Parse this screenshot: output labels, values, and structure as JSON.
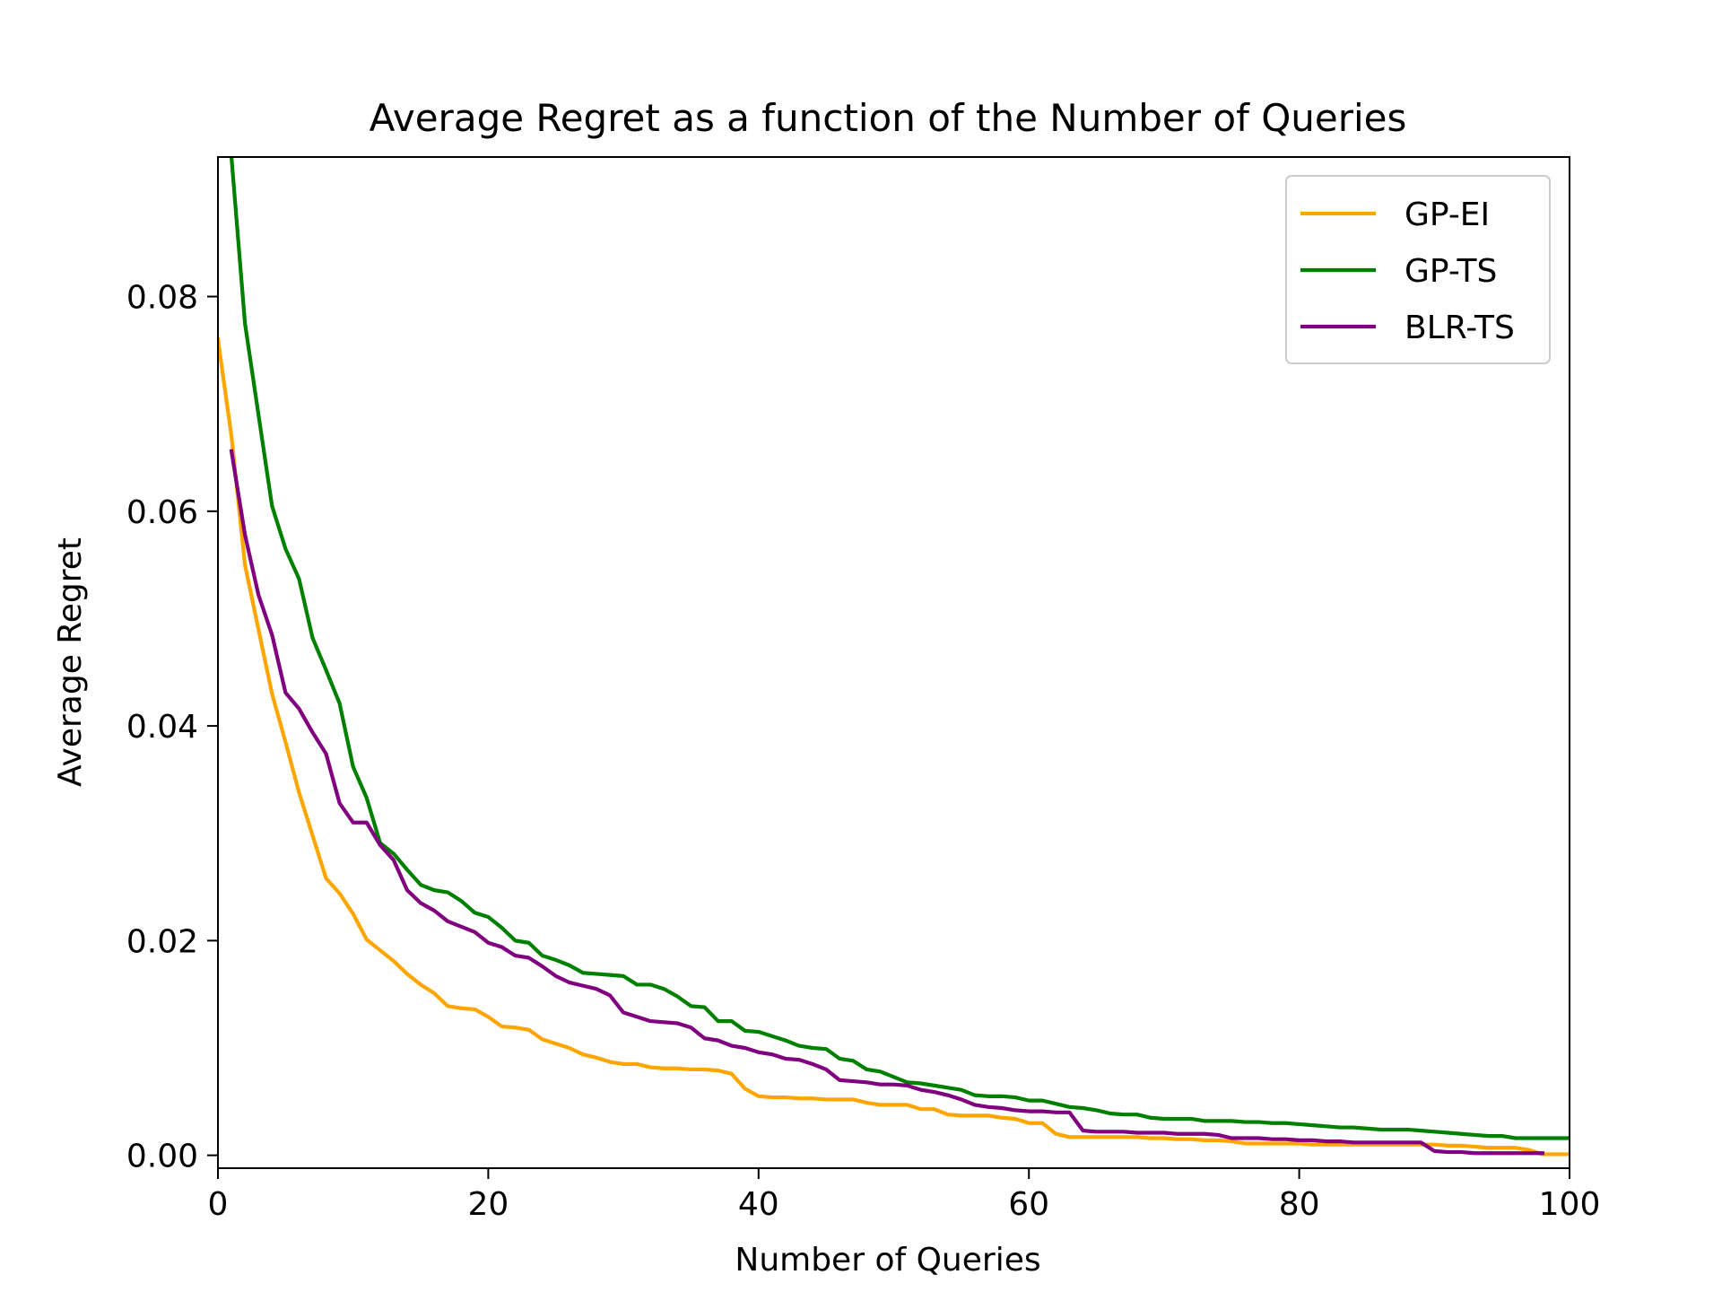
{
  "chart_data": {
    "type": "line",
    "title": "Average Regret as a function of the Number of Queries",
    "xlabel": "Number of Queries",
    "ylabel": "Average Regret",
    "xlim": [
      0,
      100
    ],
    "ylim": [
      -0.0012,
      0.093
    ],
    "xticks": [
      0,
      20,
      40,
      60,
      80,
      100
    ],
    "xtick_labels": [
      "0",
      "20",
      "40",
      "60",
      "80",
      "100"
    ],
    "yticks": [
      0.0,
      0.02,
      0.04,
      0.06,
      0.08
    ],
    "ytick_labels": [
      "0.00",
      "0.02",
      "0.04",
      "0.06",
      "0.08"
    ],
    "grid": false,
    "legend_position": "top-right",
    "series": [
      {
        "name": "GP-EI",
        "color": "#ffa500",
        "x": [
          0,
          1,
          2,
          3,
          4,
          5,
          6,
          7,
          8,
          9,
          10,
          11,
          12,
          13,
          14,
          15,
          16,
          17,
          18,
          19,
          20,
          21,
          22,
          23,
          24,
          25,
          26,
          27,
          28,
          29,
          30,
          31,
          32,
          33,
          34,
          35,
          36,
          37,
          38,
          39,
          40,
          41,
          42,
          43,
          44,
          45,
          46,
          47,
          48,
          49,
          50,
          51,
          52,
          53,
          54,
          55,
          56,
          57,
          58,
          59,
          60,
          61,
          62,
          63,
          64,
          65,
          66,
          67,
          68,
          69,
          70,
          71,
          72,
          73,
          74,
          75,
          76,
          77,
          78,
          79,
          80,
          81,
          82,
          83,
          84,
          85,
          86,
          87,
          88,
          89,
          90,
          91,
          92,
          93,
          94,
          95,
          96,
          97,
          98,
          99,
          100
        ],
        "y": [
          0.076,
          0.067,
          0.055,
          0.049,
          0.043,
          0.0385,
          0.0338,
          0.0298,
          0.0258,
          0.0244,
          0.0225,
          0.0201,
          0.0191,
          0.0181,
          0.0169,
          0.0159,
          0.0151,
          0.0139,
          0.0137,
          0.0136,
          0.0129,
          0.012,
          0.0119,
          0.0117,
          0.0108,
          0.0104,
          0.01,
          0.0094,
          0.0091,
          0.0087,
          0.0085,
          0.0085,
          0.0082,
          0.0081,
          0.0081,
          0.008,
          0.008,
          0.0079,
          0.0076,
          0.0062,
          0.0055,
          0.0054,
          0.0054,
          0.0053,
          0.0053,
          0.0052,
          0.0052,
          0.0052,
          0.0049,
          0.0047,
          0.0047,
          0.0047,
          0.0043,
          0.0043,
          0.0038,
          0.0037,
          0.0037,
          0.0037,
          0.0035,
          0.0034,
          0.003,
          0.003,
          0.002,
          0.0017,
          0.0017,
          0.0017,
          0.0017,
          0.0017,
          0.0017,
          0.0016,
          0.0016,
          0.0015,
          0.0015,
          0.0014,
          0.0014,
          0.0013,
          0.0011,
          0.0011,
          0.0011,
          0.0011,
          0.0011,
          0.001,
          0.001,
          0.001,
          0.001,
          0.001,
          0.001,
          0.001,
          0.001,
          0.001,
          0.001,
          0.0009,
          0.0009,
          0.0008,
          0.0007,
          0.0007,
          0.0007,
          0.0005,
          0.0001,
          0.0001,
          0.0001
        ]
      },
      {
        "name": "GP-TS",
        "color": "#008000",
        "x": [
          1,
          2,
          3,
          4,
          5,
          6,
          7,
          8,
          9,
          10,
          11,
          12,
          13,
          14,
          15,
          16,
          17,
          18,
          19,
          20,
          21,
          22,
          23,
          24,
          25,
          26,
          27,
          28,
          29,
          30,
          31,
          32,
          33,
          34,
          35,
          36,
          37,
          38,
          39,
          40,
          41,
          42,
          43,
          44,
          45,
          46,
          47,
          48,
          49,
          50,
          51,
          52,
          53,
          54,
          55,
          56,
          57,
          58,
          59,
          60,
          61,
          62,
          63,
          64,
          65,
          66,
          67,
          68,
          69,
          70,
          71,
          72,
          73,
          74,
          75,
          76,
          77,
          78,
          79,
          80,
          81,
          82,
          83,
          84,
          85,
          86,
          87,
          88,
          89,
          90,
          91,
          92,
          93,
          94,
          95,
          96,
          97,
          98,
          99,
          100
        ],
        "y": [
          0.093,
          0.0775,
          0.069,
          0.0605,
          0.0565,
          0.0537,
          0.0482,
          0.0452,
          0.0421,
          0.0362,
          0.0333,
          0.0291,
          0.0281,
          0.0266,
          0.0252,
          0.0247,
          0.0245,
          0.0237,
          0.0226,
          0.0222,
          0.0212,
          0.02,
          0.0198,
          0.0186,
          0.0182,
          0.0177,
          0.017,
          0.0169,
          0.0168,
          0.0167,
          0.0159,
          0.0159,
          0.0155,
          0.0148,
          0.0139,
          0.0138,
          0.0125,
          0.0125,
          0.0116,
          0.0115,
          0.0111,
          0.0107,
          0.0102,
          0.01,
          0.0099,
          0.009,
          0.0088,
          0.008,
          0.0078,
          0.0073,
          0.0068,
          0.0067,
          0.0065,
          0.0063,
          0.0061,
          0.0056,
          0.0055,
          0.0055,
          0.0054,
          0.0051,
          0.0051,
          0.0048,
          0.0045,
          0.0044,
          0.0042,
          0.0039,
          0.0038,
          0.0038,
          0.0035,
          0.0034,
          0.0034,
          0.0034,
          0.0032,
          0.0032,
          0.0032,
          0.0031,
          0.0031,
          0.003,
          0.003,
          0.0029,
          0.0028,
          0.0027,
          0.0026,
          0.0026,
          0.0025,
          0.0024,
          0.0024,
          0.0024,
          0.0023,
          0.0022,
          0.0021,
          0.002,
          0.0019,
          0.0018,
          0.0018,
          0.0016,
          0.0016,
          0.0016,
          0.0016,
          0.0016
        ]
      },
      {
        "name": "BLR-TS",
        "color": "#800080",
        "x": [
          1,
          2,
          3,
          4,
          5,
          6,
          7,
          8,
          9,
          10,
          11,
          12,
          13,
          14,
          15,
          16,
          17,
          18,
          19,
          20,
          21,
          22,
          23,
          24,
          25,
          26,
          27,
          28,
          29,
          30,
          31,
          32,
          33,
          34,
          35,
          36,
          37,
          38,
          39,
          40,
          41,
          42,
          43,
          44,
          45,
          46,
          47,
          48,
          49,
          50,
          51,
          52,
          53,
          54,
          55,
          56,
          57,
          58,
          59,
          60,
          61,
          62,
          63,
          64,
          65,
          66,
          67,
          68,
          69,
          70,
          71,
          72,
          73,
          74,
          75,
          76,
          77,
          78,
          79,
          80,
          81,
          82,
          83,
          84,
          85,
          86,
          87,
          88,
          89,
          90,
          91,
          92,
          93,
          94,
          95,
          96,
          97,
          98
        ],
        "y": [
          0.0656,
          0.0578,
          0.0522,
          0.0485,
          0.0431,
          0.0416,
          0.0394,
          0.0374,
          0.0328,
          0.031,
          0.031,
          0.0289,
          0.0275,
          0.0247,
          0.0235,
          0.0228,
          0.0218,
          0.0213,
          0.0208,
          0.0198,
          0.0194,
          0.0186,
          0.0184,
          0.0176,
          0.0167,
          0.0161,
          0.0158,
          0.0155,
          0.0149,
          0.0133,
          0.0129,
          0.0125,
          0.0124,
          0.0123,
          0.0119,
          0.0109,
          0.0107,
          0.0102,
          0.01,
          0.0096,
          0.0094,
          0.009,
          0.0089,
          0.0085,
          0.008,
          0.007,
          0.0069,
          0.0068,
          0.0066,
          0.0066,
          0.0065,
          0.0061,
          0.0059,
          0.0056,
          0.0052,
          0.0047,
          0.0045,
          0.0044,
          0.0042,
          0.0041,
          0.0041,
          0.004,
          0.004,
          0.0023,
          0.0022,
          0.0022,
          0.0022,
          0.0021,
          0.0021,
          0.0021,
          0.002,
          0.002,
          0.002,
          0.0019,
          0.0016,
          0.0016,
          0.0016,
          0.0015,
          0.0015,
          0.0014,
          0.0014,
          0.0013,
          0.0013,
          0.0012,
          0.0012,
          0.0012,
          0.0012,
          0.0012,
          0.0012,
          0.0004,
          0.0003,
          0.0003,
          0.0002,
          0.0002,
          0.0002,
          0.0002,
          0.0002,
          0.0002
        ]
      }
    ]
  }
}
